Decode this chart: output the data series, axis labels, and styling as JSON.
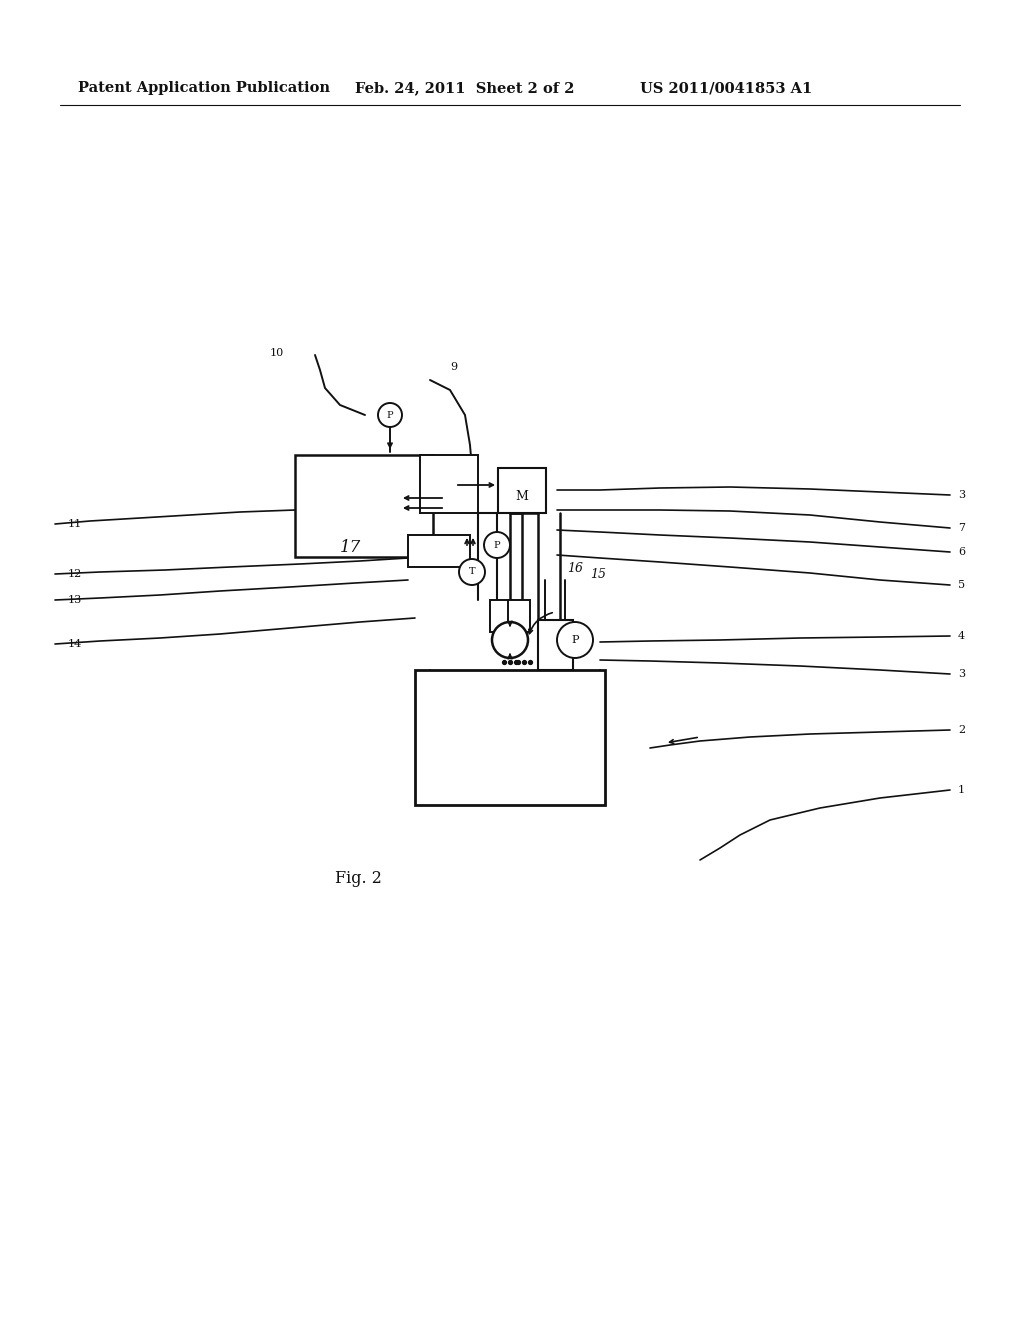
{
  "bg_color": "#ffffff",
  "line_color": "#111111",
  "header_text1": "Patent Application Publication",
  "header_text2": "Feb. 24, 2011  Sheet 2 of 2",
  "header_text3": "US 2011/0041853 A1",
  "fig_label": "Fig. 2",
  "header_fontsize": 10.5,
  "fig_label_fontsize": 11.5,
  "lw_main": 1.4,
  "lw_thick": 2.0,
  "lw_thin": 0.9
}
